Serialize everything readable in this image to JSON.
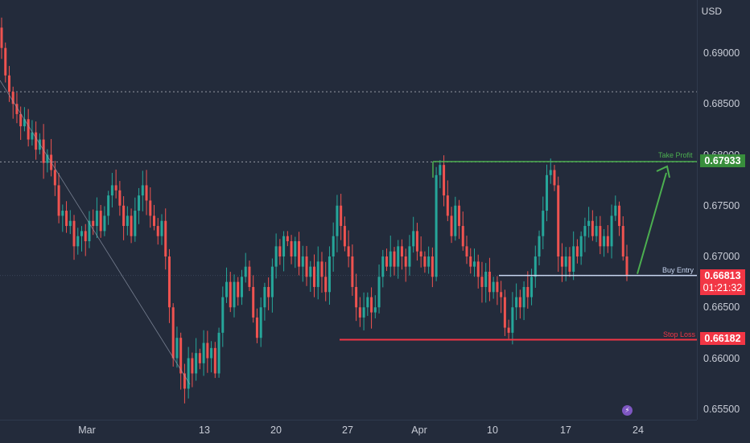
{
  "chart_data": {
    "type": "candlestick",
    "currency": "USD",
    "yticks": [
      "0.69000",
      "0.68500",
      "0.68000",
      "0.67500",
      "0.67000",
      "0.66500",
      "0.66000",
      "0.65500"
    ],
    "xticks": [
      "Mar",
      "13",
      "20",
      "27",
      "Apr",
      "10",
      "17",
      "24"
    ],
    "ylim": [
      0.653,
      0.694
    ],
    "levels": {
      "take_profit": {
        "label": "Take Profit",
        "price": "0.67933",
        "color": "#4caf50"
      },
      "buy_entry": {
        "label": "Buy Entry",
        "price": "0.66813",
        "countdown": "01:21:32",
        "color": "#f23645"
      },
      "stop_loss": {
        "label": "Stop Loss",
        "price": "0.66182",
        "color": "#f23645"
      }
    },
    "dotted_levels": [
      0.6862,
      0.6793
    ],
    "closes": [
      0.6905,
      0.6878,
      0.6862,
      0.685,
      0.684,
      0.6828,
      0.6835,
      0.6815,
      0.6822,
      0.6805,
      0.6815,
      0.6792,
      0.68,
      0.6785,
      0.677,
      0.674,
      0.6745,
      0.673,
      0.6735,
      0.671,
      0.672,
      0.6725,
      0.6715,
      0.6735,
      0.673,
      0.6745,
      0.6725,
      0.674,
      0.676,
      0.677,
      0.6765,
      0.675,
      0.673,
      0.674,
      0.672,
      0.6745,
      0.676,
      0.677,
      0.6755,
      0.674,
      0.673,
      0.672,
      0.6735,
      0.67,
      0.665,
      0.66,
      0.662,
      0.6585,
      0.657,
      0.66,
      0.6585,
      0.6605,
      0.6595,
      0.6615,
      0.66,
      0.661,
      0.6585,
      0.6625,
      0.666,
      0.6675,
      0.665,
      0.6675,
      0.666,
      0.668,
      0.669,
      0.667,
      0.664,
      0.662,
      0.665,
      0.667,
      0.666,
      0.669,
      0.671,
      0.67,
      0.672,
      0.6715,
      0.67,
      0.6715,
      0.669,
      0.67,
      0.668,
      0.669,
      0.667,
      0.6695,
      0.668,
      0.6665,
      0.67,
      0.672,
      0.675,
      0.673,
      0.671,
      0.67,
      0.667,
      0.665,
      0.664,
      0.665,
      0.666,
      0.6645,
      0.665,
      0.668,
      0.67,
      0.669,
      0.6705,
      0.669,
      0.671,
      0.67,
      0.669,
      0.671,
      0.6725,
      0.6705,
      0.67,
      0.669,
      0.67,
      0.668,
      0.678,
      0.679,
      0.676,
      0.674,
      0.672,
      0.675,
      0.673,
      0.671,
      0.67,
      0.669,
      0.6695,
      0.668,
      0.667,
      0.6685,
      0.6665,
      0.6675,
      0.6665,
      0.666,
      0.663,
      0.6625,
      0.665,
      0.666,
      0.665,
      0.667,
      0.666,
      0.668,
      0.67,
      0.672,
      0.6745,
      0.678,
      0.6785,
      0.677,
      0.67,
      0.669,
      0.67,
      0.6685,
      0.671,
      0.67,
      0.672,
      0.673,
      0.6735,
      0.672,
      0.673,
      0.671,
      0.672,
      0.671,
      0.674,
      0.675,
      0.673,
      0.67,
      0.6681
    ]
  }
}
